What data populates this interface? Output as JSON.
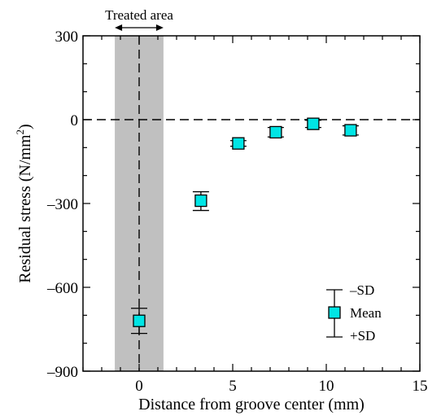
{
  "chart_data": {
    "type": "scatter",
    "xlabel": "Distance from groove center  (mm)",
    "ylabel_main": "Residual stress  (N/mm",
    "ylabel_sup": "2",
    "ylabel_end": ")",
    "xlim": [
      -3,
      15
    ],
    "ylim": [
      -900,
      300
    ],
    "xticks": [
      0,
      5,
      10,
      15
    ],
    "yticks": [
      -900,
      -600,
      -300,
      0,
      300
    ],
    "ytick_labels": [
      "–900",
      "–600",
      "–300",
      "0",
      "300"
    ],
    "treated_area": {
      "label": "Treated area",
      "x_range": [
        -1.3,
        1.3
      ]
    },
    "reference_lines": {
      "horizontal_y": 0,
      "vertical_x": 0
    },
    "series": [
      {
        "x": [
          0,
          3.3,
          5.3,
          7.3,
          9.3,
          11.3
        ],
        "mean": [
          -720,
          -290,
          -85,
          -45,
          -15,
          -38
        ],
        "minus_sd": [
          -765,
          -325,
          -95,
          -62,
          -28,
          -55
        ],
        "plus_sd": [
          -675,
          -258,
          -75,
          -28,
          -2,
          -22
        ]
      }
    ],
    "legend": {
      "minus_sd": "–SD",
      "mean": "Mean",
      "plus_sd": "+SD",
      "placement": "bottom-right"
    },
    "colors": {
      "marker_fill": "#00e5e5",
      "treated_fill": "#c0c0c0",
      "ink": "#000000"
    }
  }
}
